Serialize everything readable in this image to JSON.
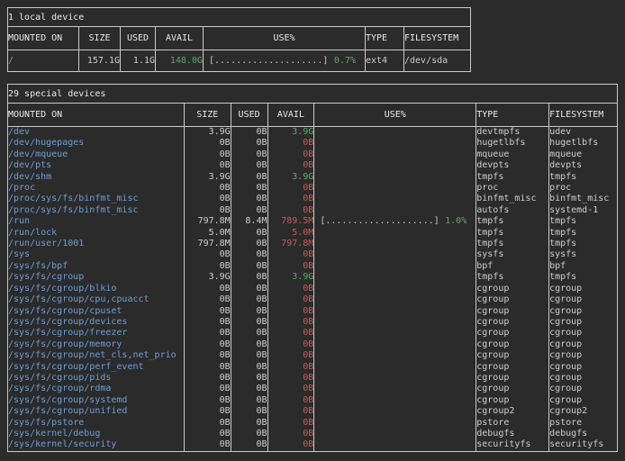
{
  "colors": {
    "background": "#2b2b2b",
    "border": "#cacaca",
    "header_text": "#eaeaea",
    "text": "#cdcdcd",
    "mount_blue": "#6d9fd6",
    "avail_green": "#62a862",
    "avail_red": "#bf5f58"
  },
  "local_table": {
    "title": "1 local device",
    "headers": [
      "MOUNTED ON",
      "SIZE",
      "USED",
      "AVAIL",
      "USE%",
      "TYPE",
      "FILESYSTEM"
    ],
    "rows": [
      {
        "mounted_on": "/",
        "size": "157.1G",
        "used": "1.1G",
        "avail": "148.0G",
        "avail_status": "ok",
        "use_bar": "[....................]",
        "use_pct": "0.7%",
        "type": "ext4",
        "filesystem": "/dev/sda"
      }
    ]
  },
  "special_table": {
    "title": "29 special devices",
    "headers": [
      "MOUNTED ON",
      "SIZE",
      "USED",
      "AVAIL",
      "USE%",
      "TYPE",
      "FILESYSTEM"
    ],
    "rows": [
      {
        "mounted_on": "/dev",
        "size": "3.9G",
        "used": "0B",
        "avail": "3.9G",
        "avail_status": "ok",
        "use_bar": "",
        "use_pct": "",
        "type": "devtmpfs",
        "filesystem": "udev"
      },
      {
        "mounted_on": "/dev/hugepages",
        "size": "0B",
        "used": "0B",
        "avail": "0B",
        "avail_status": "low",
        "use_bar": "",
        "use_pct": "",
        "type": "hugetlbfs",
        "filesystem": "hugetlbfs"
      },
      {
        "mounted_on": "/dev/mqueue",
        "size": "0B",
        "used": "0B",
        "avail": "0B",
        "avail_status": "low",
        "use_bar": "",
        "use_pct": "",
        "type": "mqueue",
        "filesystem": "mqueue"
      },
      {
        "mounted_on": "/dev/pts",
        "size": "0B",
        "used": "0B",
        "avail": "0B",
        "avail_status": "low",
        "use_bar": "",
        "use_pct": "",
        "type": "devpts",
        "filesystem": "devpts"
      },
      {
        "mounted_on": "/dev/shm",
        "size": "3.9G",
        "used": "0B",
        "avail": "3.9G",
        "avail_status": "ok",
        "use_bar": "",
        "use_pct": "",
        "type": "tmpfs",
        "filesystem": "tmpfs"
      },
      {
        "mounted_on": "/proc",
        "size": "0B",
        "used": "0B",
        "avail": "0B",
        "avail_status": "low",
        "use_bar": "",
        "use_pct": "",
        "type": "proc",
        "filesystem": "proc"
      },
      {
        "mounted_on": "/proc/sys/fs/binfmt_misc",
        "size": "0B",
        "used": "0B",
        "avail": "0B",
        "avail_status": "low",
        "use_bar": "",
        "use_pct": "",
        "type": "binfmt_misc",
        "filesystem": "binfmt_misc"
      },
      {
        "mounted_on": "/proc/sys/fs/binfmt_misc",
        "size": "0B",
        "used": "0B",
        "avail": "0B",
        "avail_status": "low",
        "use_bar": "",
        "use_pct": "",
        "type": "autofs",
        "filesystem": "systemd-1"
      },
      {
        "mounted_on": "/run",
        "size": "797.8M",
        "used": "8.4M",
        "avail": "789.5M",
        "avail_status": "low",
        "use_bar": "[....................]",
        "use_pct": "1.0%",
        "type": "tmpfs",
        "filesystem": "tmpfs"
      },
      {
        "mounted_on": "/run/lock",
        "size": "5.0M",
        "used": "0B",
        "avail": "5.0M",
        "avail_status": "low",
        "use_bar": "",
        "use_pct": "",
        "type": "tmpfs",
        "filesystem": "tmpfs"
      },
      {
        "mounted_on": "/run/user/1001",
        "size": "797.8M",
        "used": "0B",
        "avail": "797.8M",
        "avail_status": "low",
        "use_bar": "",
        "use_pct": "",
        "type": "tmpfs",
        "filesystem": "tmpfs"
      },
      {
        "mounted_on": "/sys",
        "size": "0B",
        "used": "0B",
        "avail": "0B",
        "avail_status": "low",
        "use_bar": "",
        "use_pct": "",
        "type": "sysfs",
        "filesystem": "sysfs"
      },
      {
        "mounted_on": "/sys/fs/bpf",
        "size": "0B",
        "used": "0B",
        "avail": "0B",
        "avail_status": "low",
        "use_bar": "",
        "use_pct": "",
        "type": "bpf",
        "filesystem": "bpf"
      },
      {
        "mounted_on": "/sys/fs/cgroup",
        "size": "3.9G",
        "used": "0B",
        "avail": "3.9G",
        "avail_status": "ok",
        "use_bar": "",
        "use_pct": "",
        "type": "tmpfs",
        "filesystem": "tmpfs"
      },
      {
        "mounted_on": "/sys/fs/cgroup/blkio",
        "size": "0B",
        "used": "0B",
        "avail": "0B",
        "avail_status": "low",
        "use_bar": "",
        "use_pct": "",
        "type": "cgroup",
        "filesystem": "cgroup"
      },
      {
        "mounted_on": "/sys/fs/cgroup/cpu,cpuacct",
        "size": "0B",
        "used": "0B",
        "avail": "0B",
        "avail_status": "low",
        "use_bar": "",
        "use_pct": "",
        "type": "cgroup",
        "filesystem": "cgroup"
      },
      {
        "mounted_on": "/sys/fs/cgroup/cpuset",
        "size": "0B",
        "used": "0B",
        "avail": "0B",
        "avail_status": "low",
        "use_bar": "",
        "use_pct": "",
        "type": "cgroup",
        "filesystem": "cgroup"
      },
      {
        "mounted_on": "/sys/fs/cgroup/devices",
        "size": "0B",
        "used": "0B",
        "avail": "0B",
        "avail_status": "low",
        "use_bar": "",
        "use_pct": "",
        "type": "cgroup",
        "filesystem": "cgroup"
      },
      {
        "mounted_on": "/sys/fs/cgroup/freezer",
        "size": "0B",
        "used": "0B",
        "avail": "0B",
        "avail_status": "low",
        "use_bar": "",
        "use_pct": "",
        "type": "cgroup",
        "filesystem": "cgroup"
      },
      {
        "mounted_on": "/sys/fs/cgroup/memory",
        "size": "0B",
        "used": "0B",
        "avail": "0B",
        "avail_status": "low",
        "use_bar": "",
        "use_pct": "",
        "type": "cgroup",
        "filesystem": "cgroup"
      },
      {
        "mounted_on": "/sys/fs/cgroup/net_cls,net_prio",
        "size": "0B",
        "used": "0B",
        "avail": "0B",
        "avail_status": "low",
        "use_bar": "",
        "use_pct": "",
        "type": "cgroup",
        "filesystem": "cgroup"
      },
      {
        "mounted_on": "/sys/fs/cgroup/perf_event",
        "size": "0B",
        "used": "0B",
        "avail": "0B",
        "avail_status": "low",
        "use_bar": "",
        "use_pct": "",
        "type": "cgroup",
        "filesystem": "cgroup"
      },
      {
        "mounted_on": "/sys/fs/cgroup/pids",
        "size": "0B",
        "used": "0B",
        "avail": "0B",
        "avail_status": "low",
        "use_bar": "",
        "use_pct": "",
        "type": "cgroup",
        "filesystem": "cgroup"
      },
      {
        "mounted_on": "/sys/fs/cgroup/rdma",
        "size": "0B",
        "used": "0B",
        "avail": "0B",
        "avail_status": "low",
        "use_bar": "",
        "use_pct": "",
        "type": "cgroup",
        "filesystem": "cgroup"
      },
      {
        "mounted_on": "/sys/fs/cgroup/systemd",
        "size": "0B",
        "used": "0B",
        "avail": "0B",
        "avail_status": "low",
        "use_bar": "",
        "use_pct": "",
        "type": "cgroup",
        "filesystem": "cgroup"
      },
      {
        "mounted_on": "/sys/fs/cgroup/unified",
        "size": "0B",
        "used": "0B",
        "avail": "0B",
        "avail_status": "low",
        "use_bar": "",
        "use_pct": "",
        "type": "cgroup2",
        "filesystem": "cgroup2"
      },
      {
        "mounted_on": "/sys/fs/pstore",
        "size": "0B",
        "used": "0B",
        "avail": "0B",
        "avail_status": "low",
        "use_bar": "",
        "use_pct": "",
        "type": "pstore",
        "filesystem": "pstore"
      },
      {
        "mounted_on": "/sys/kernel/debug",
        "size": "0B",
        "used": "0B",
        "avail": "0B",
        "avail_status": "low",
        "use_bar": "",
        "use_pct": "",
        "type": "debugfs",
        "filesystem": "debugfs"
      },
      {
        "mounted_on": "/sys/kernel/security",
        "size": "0B",
        "used": "0B",
        "avail": "0B",
        "avail_status": "low",
        "use_bar": "",
        "use_pct": "",
        "type": "securityfs",
        "filesystem": "securityfs"
      }
    ]
  }
}
